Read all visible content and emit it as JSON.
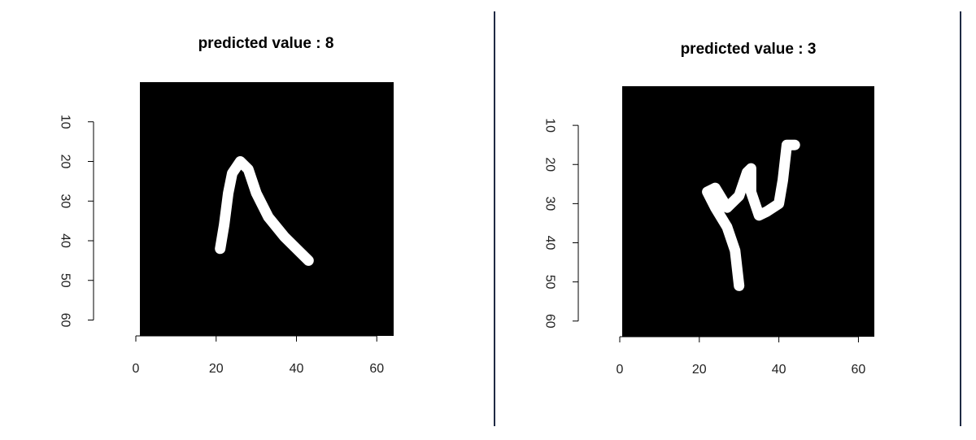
{
  "colors": {
    "background": "#ffffff",
    "image_background": "#000000",
    "stroke": "#ffffff",
    "divider": "#1f2a44",
    "axis": "#000000"
  },
  "chart_data": [
    {
      "type": "heatmap",
      "title": "predicted value : 8",
      "xlabel": "",
      "ylabel": "",
      "xlim": [
        0,
        64
      ],
      "ylim": [
        64,
        0
      ],
      "x_ticks": [
        0,
        20,
        40,
        60
      ],
      "y_ticks": [
        10,
        20,
        30,
        40,
        50,
        60
      ],
      "image": "white handwritten stroke on black 64x64 grid",
      "stroke_points": [
        [
          21,
          42
        ],
        [
          22,
          36
        ],
        [
          23,
          28
        ],
        [
          24,
          23
        ],
        [
          26,
          20
        ],
        [
          28,
          22
        ],
        [
          30,
          28
        ],
        [
          33,
          34
        ],
        [
          37,
          39
        ],
        [
          41,
          43
        ],
        [
          43,
          45
        ]
      ]
    },
    {
      "type": "heatmap",
      "title": "predicted value : 3",
      "xlabel": "",
      "ylabel": "",
      "xlim": [
        0,
        64
      ],
      "ylim": [
        64,
        0
      ],
      "x_ticks": [
        0,
        20,
        40,
        60
      ],
      "y_ticks": [
        10,
        20,
        30,
        40,
        50,
        60
      ],
      "image": "white handwritten stroke on black 64x64 grid",
      "stroke_points": [
        [
          30,
          51
        ],
        [
          29,
          42
        ],
        [
          27,
          36
        ],
        [
          24,
          31
        ],
        [
          22,
          27
        ],
        [
          24,
          26
        ],
        [
          27,
          31
        ],
        [
          30,
          28
        ],
        [
          32,
          22
        ],
        [
          33,
          21
        ],
        [
          33,
          27
        ],
        [
          35,
          33
        ],
        [
          37,
          32
        ],
        [
          40,
          30
        ],
        [
          41,
          24
        ],
        [
          42,
          15
        ],
        [
          44,
          15
        ]
      ]
    }
  ]
}
